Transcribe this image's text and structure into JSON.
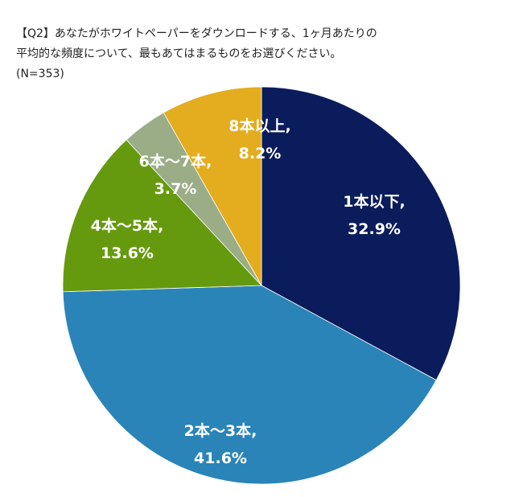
{
  "title": {
    "line1": "【Q2】あなたがホワイトペーパーをダウンロードする、1ヶ月あたりの",
    "line2": "平均的な頻度について、最もあてはまるものをお選びください。",
    "line3": "(N=353)"
  },
  "chart_data": {
    "type": "pie",
    "title": "【Q2】あなたがホワイトペーパーをダウンロードする、1ヶ月あたりの平均的な頻度について、最もあてはまるものをお選びください。",
    "subtitle": "(N=353)",
    "start": "12 o'clock",
    "direction": "clockwise",
    "legend": "none (labels inside slices)",
    "slices": [
      {
        "label": "1本以下",
        "value": 32.9,
        "display": "32.9%",
        "color": "#0b1c5c"
      },
      {
        "label": "2本〜3本",
        "value": 41.6,
        "display": "41.6%",
        "color": "#2a84b8"
      },
      {
        "label": "4本〜5本",
        "value": 13.6,
        "display": "13.6%",
        "color": "#669a0e"
      },
      {
        "label": "6本〜7本",
        "value": 3.7,
        "display": "3.7%",
        "color": "#9aad86"
      },
      {
        "label": "8本以上",
        "value": 8.2,
        "display": "8.2%",
        "color": "#e4ad1f"
      }
    ]
  }
}
